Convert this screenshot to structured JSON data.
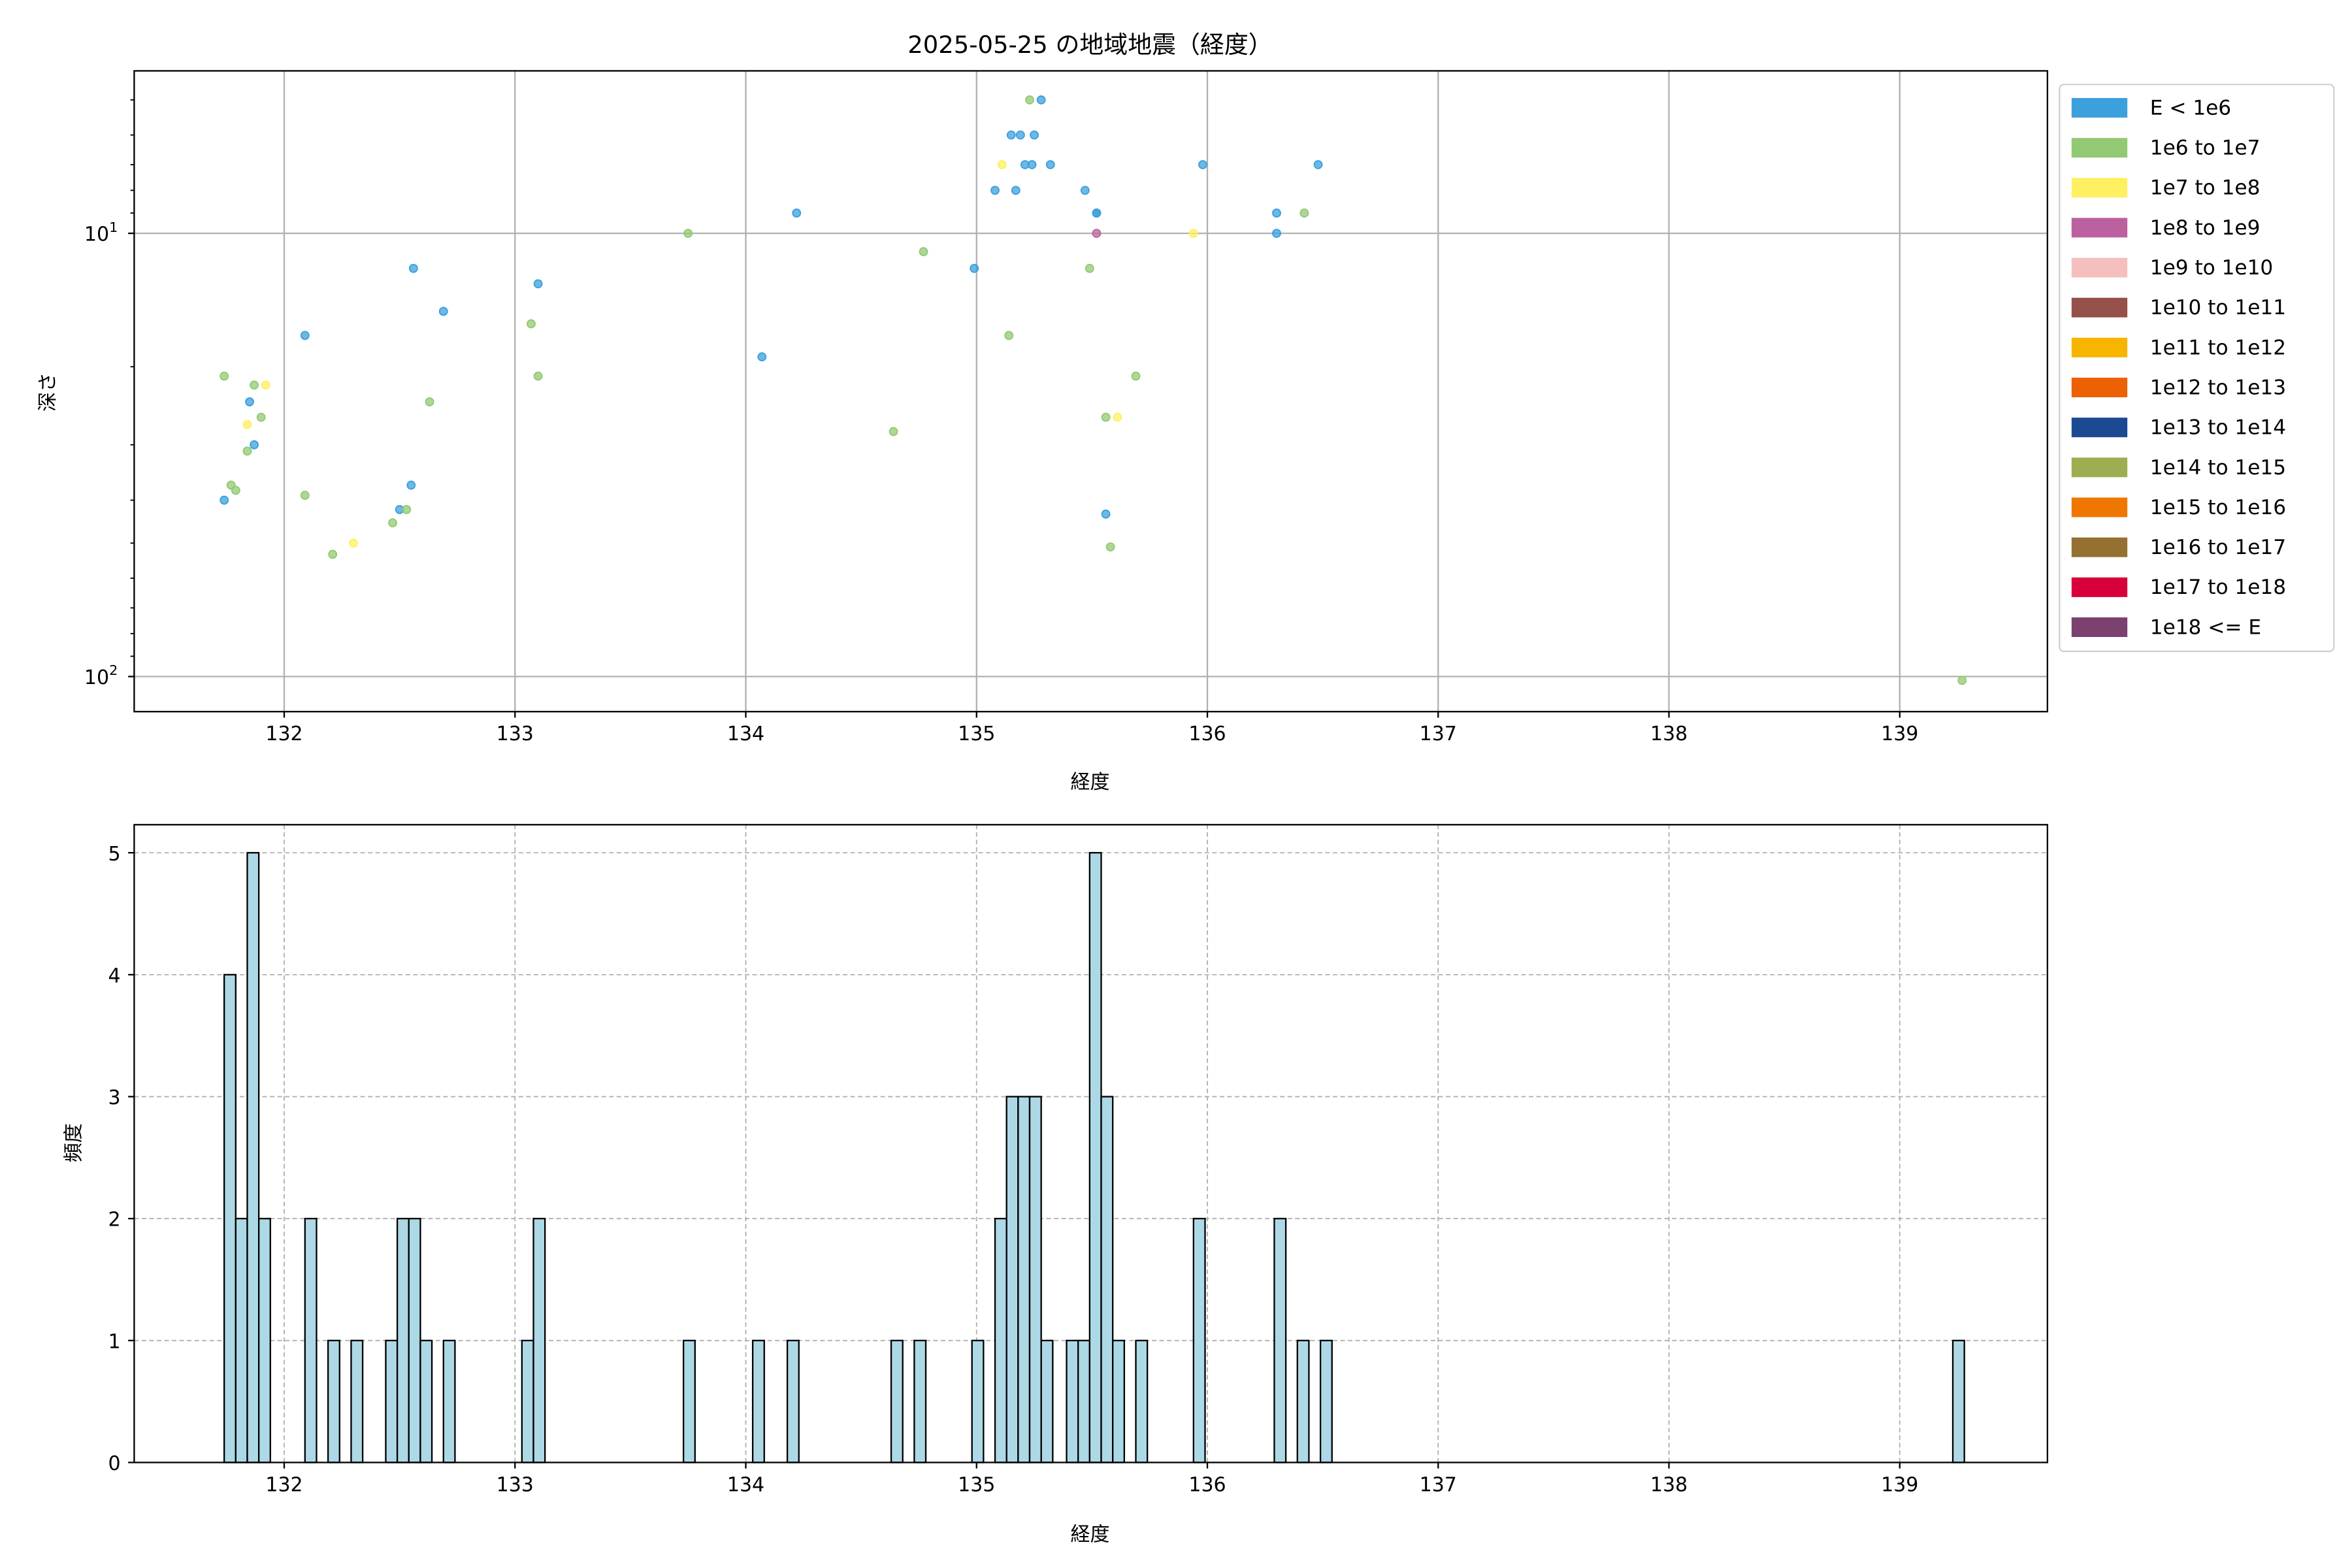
{
  "chart_data": [
    {
      "type": "scatter",
      "title": "2025-05-25 の地域地震（経度）",
      "xlabel": "経度",
      "ylabel": "深さ",
      "xlim": [
        131.35,
        139.64
      ],
      "ylim": [
        120,
        4.3
      ],
      "y_scale": "log",
      "y_inverted": true,
      "grid": true,
      "x_ticks": [
        "132",
        "133",
        "134",
        "135",
        "136",
        "137",
        "138",
        "139"
      ],
      "y_ticks": [
        {
          "value": 10,
          "base": "10",
          "exp": "1"
        },
        {
          "value": 100,
          "base": "10",
          "exp": "2"
        }
      ],
      "legend_position": "outside-right",
      "legend": [
        {
          "label": "E < 1e6",
          "color": "#3CA0DC"
        },
        {
          "label": "1e6 to 1e7",
          "color": "#93C973"
        },
        {
          "label": "1e7 to 1e8",
          "color": "#FFF062"
        },
        {
          "label": "1e8 to 1e9",
          "color": "#BB619F"
        },
        {
          "label": "1e9 to 1e10",
          "color": "#F5BFBD"
        },
        {
          "label": "1e10 to 1e11",
          "color": "#955049"
        },
        {
          "label": "1e11 to 1e12",
          "color": "#F7B500"
        },
        {
          "label": "1e12 to 1e13",
          "color": "#EB6104"
        },
        {
          "label": "1e13 to 1e14",
          "color": "#1B4A92"
        },
        {
          "label": "1e14 to 1e15",
          "color": "#9CAE50"
        },
        {
          "label": "1e15 to 1e16",
          "color": "#F07602"
        },
        {
          "label": "1e16 to 1e17",
          "color": "#947131"
        },
        {
          "label": "1e17 to 1e18",
          "color": "#D7003A"
        },
        {
          "label": "1e18 <= E",
          "color": "#7A4171"
        }
      ],
      "points": [
        [
          131.74,
          21,
          1
        ],
        [
          131.87,
          22,
          1
        ],
        [
          131.92,
          22,
          2
        ],
        [
          131.85,
          24,
          0
        ],
        [
          131.9,
          26,
          1
        ],
        [
          131.84,
          27,
          2
        ],
        [
          131.87,
          30,
          0
        ],
        [
          131.84,
          31,
          1
        ],
        [
          131.77,
          37,
          1
        ],
        [
          131.79,
          38,
          1
        ],
        [
          131.74,
          40,
          0
        ],
        [
          132.09,
          17,
          0
        ],
        [
          132.09,
          39,
          1
        ],
        [
          132.21,
          53,
          1
        ],
        [
          132.3,
          50,
          2
        ],
        [
          132.56,
          12,
          0
        ],
        [
          132.69,
          15,
          0
        ],
        [
          132.63,
          24,
          1
        ],
        [
          132.55,
          37,
          0
        ],
        [
          132.5,
          42,
          0
        ],
        [
          132.53,
          42,
          1
        ],
        [
          132.47,
          45,
          1
        ],
        [
          133.1,
          13,
          0
        ],
        [
          133.07,
          16,
          1
        ],
        [
          133.1,
          21,
          1
        ],
        [
          133.75,
          10,
          1
        ],
        [
          134.07,
          19,
          0
        ],
        [
          134.22,
          9,
          0
        ],
        [
          134.64,
          28,
          1
        ],
        [
          134.77,
          11,
          1
        ],
        [
          134.99,
          12,
          0
        ],
        [
          135.23,
          5,
          1
        ],
        [
          135.28,
          5,
          0
        ],
        [
          135.15,
          6,
          0
        ],
        [
          135.19,
          6,
          0
        ],
        [
          135.25,
          6,
          0
        ],
        [
          135.11,
          7,
          2
        ],
        [
          135.21,
          7,
          0
        ],
        [
          135.24,
          7,
          0
        ],
        [
          135.32,
          7,
          0
        ],
        [
          135.98,
          7,
          0
        ],
        [
          136.48,
          7,
          0
        ],
        [
          135.08,
          8,
          0
        ],
        [
          135.17,
          8,
          0
        ],
        [
          135.47,
          8,
          0
        ],
        [
          135.52,
          9,
          0
        ],
        [
          135.52,
          9,
          0
        ],
        [
          136.3,
          9,
          0
        ],
        [
          136.42,
          9,
          1
        ],
        [
          135.52,
          10,
          3
        ],
        [
          135.94,
          10,
          2
        ],
        [
          136.3,
          10,
          0
        ],
        [
          135.49,
          12,
          1
        ],
        [
          135.14,
          17,
          1
        ],
        [
          135.69,
          21,
          1
        ],
        [
          135.56,
          26,
          1
        ],
        [
          135.61,
          26,
          2
        ],
        [
          135.56,
          43,
          0
        ],
        [
          135.58,
          51,
          1
        ],
        [
          139.27,
          102,
          1
        ]
      ]
    },
    {
      "type": "bar",
      "subtype": "histogram",
      "xlabel": "経度",
      "ylabel": "頻度",
      "xlim": [
        131.35,
        139.64
      ],
      "ylim": [
        0,
        5.23
      ],
      "grid": true,
      "grid_style": "dashed",
      "bar_color": "#ADD8E6",
      "edge_color": "#000000",
      "bin_width": 0.05,
      "x_ticks": [
        "132",
        "133",
        "134",
        "135",
        "136",
        "137",
        "138",
        "139"
      ],
      "y_ticks": [
        "0",
        "1",
        "2",
        "3",
        "4",
        "5"
      ],
      "bins": [
        {
          "x0": 131.74,
          "count": 4
        },
        {
          "x0": 131.79,
          "count": 2
        },
        {
          "x0": 131.84,
          "count": 5
        },
        {
          "x0": 131.89,
          "count": 2
        },
        {
          "x0": 132.09,
          "count": 2
        },
        {
          "x0": 132.19,
          "count": 1
        },
        {
          "x0": 132.29,
          "count": 1
        },
        {
          "x0": 132.44,
          "count": 1
        },
        {
          "x0": 132.49,
          "count": 2
        },
        {
          "x0": 132.54,
          "count": 2
        },
        {
          "x0": 132.59,
          "count": 1
        },
        {
          "x0": 132.69,
          "count": 1
        },
        {
          "x0": 133.03,
          "count": 1
        },
        {
          "x0": 133.08,
          "count": 2
        },
        {
          "x0": 133.73,
          "count": 1
        },
        {
          "x0": 134.03,
          "count": 1
        },
        {
          "x0": 134.18,
          "count": 1
        },
        {
          "x0": 134.63,
          "count": 1
        },
        {
          "x0": 134.73,
          "count": 1
        },
        {
          "x0": 134.98,
          "count": 1
        },
        {
          "x0": 135.08,
          "count": 2
        },
        {
          "x0": 135.13,
          "count": 3
        },
        {
          "x0": 135.18,
          "count": 3
        },
        {
          "x0": 135.23,
          "count": 3
        },
        {
          "x0": 135.28,
          "count": 1
        },
        {
          "x0": 135.39,
          "count": 1
        },
        {
          "x0": 135.44,
          "count": 1
        },
        {
          "x0": 135.49,
          "count": 5
        },
        {
          "x0": 135.54,
          "count": 3
        },
        {
          "x0": 135.59,
          "count": 1
        },
        {
          "x0": 135.69,
          "count": 1
        },
        {
          "x0": 135.94,
          "count": 2
        },
        {
          "x0": 136.29,
          "count": 2
        },
        {
          "x0": 136.39,
          "count": 1
        },
        {
          "x0": 136.49,
          "count": 1
        },
        {
          "x0": 139.23,
          "count": 1
        }
      ]
    }
  ]
}
